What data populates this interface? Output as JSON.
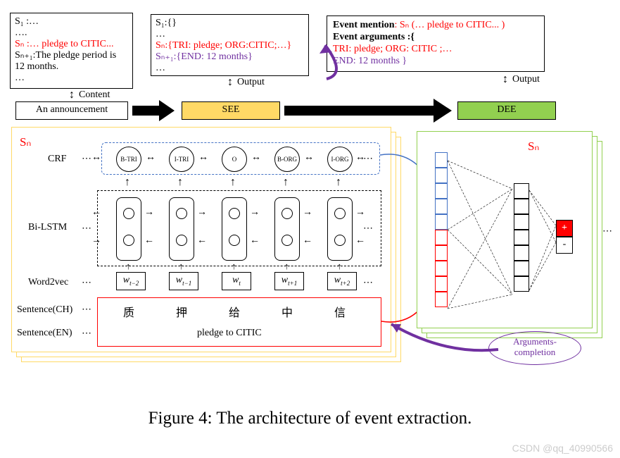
{
  "caption": "Figure 4: The architecture of event extraction.",
  "watermark": "CSDN @qq_40990566",
  "boxes": {
    "input": {
      "lines": [
        {
          "t": "S₁ :…",
          "c": "#000"
        },
        {
          "t": "….",
          "c": "#000"
        },
        {
          "t": "Sₙ :… pledge to CITIC...",
          "c": "#ff0000"
        },
        {
          "t": "Sₙ₊₁:The pledge period is",
          "c": "#000"
        },
        {
          "t": "12 months.",
          "c": "#000"
        },
        {
          "t": "…",
          "c": "#000"
        }
      ]
    },
    "see": {
      "lines": [
        {
          "t": "S₁:{}",
          "c": "#000"
        },
        {
          "t": "…",
          "c": "#000"
        },
        {
          "t": "Sₙ:{TRI: pledge; ORG:CITIC;…}",
          "c": "#ff0000"
        },
        {
          "t": "Sₙ₊₁:{END: 12 months}",
          "c": "#7030a0"
        },
        {
          "t": "…",
          "c": "#000"
        }
      ]
    },
    "dee": {
      "l1a": "Event mention",
      "l1b": ": Sₙ",
      "l1c": "(… pledge to CITIC... )",
      "l2": "Event arguments :{",
      "l3": "TRI: pledge; ORG: CITIC ;…",
      "l4": "END: 12 months }"
    }
  },
  "labels": {
    "content": "Content",
    "output": "Output",
    "announcement": "An announcement",
    "see": "SEE",
    "dee": "DEE",
    "sn": "Sₙ",
    "crf": "CRF",
    "bilstm": "Bi-LSTM",
    "w2v": "Word2vec",
    "sentCH": "Sentence(CH)",
    "sentEN": "Sentence(EN)",
    "argcomp": "Arguments-\ncompletion",
    "plus": "+",
    "minus": "-"
  },
  "crf_tags": [
    "B-TRI",
    "I-TRI",
    "O",
    "B-ORG",
    "I-ORG"
  ],
  "w2v_tokens": [
    "w",
    "w",
    "w",
    "w",
    "w"
  ],
  "w2v_subs": [
    "t−2",
    "t−1",
    "t",
    "t+1",
    "t+2"
  ],
  "ch_tokens": [
    "质",
    "押",
    "给",
    "中",
    "信"
  ],
  "en_sentence": "pledge to CITIC",
  "colors": {
    "see_fill": "#ffd966",
    "dee_fill": "#92d050",
    "red": "#ff0000",
    "purple": "#7030a0",
    "blue_border": "#4472c4",
    "red_border": "#ff0000",
    "yellow_frame": "#ffd966",
    "red_frame": "#ff0000",
    "plus_fill": "#ff0000"
  }
}
